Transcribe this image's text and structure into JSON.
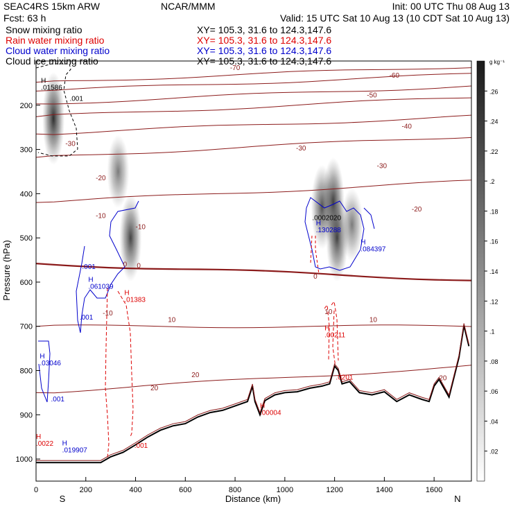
{
  "header": {
    "left_lines": [
      "SEAC4RS 15km ARW",
      "Fcst:    63 h"
    ],
    "center": "NCAR/MMM",
    "init": "Init: 00 UTC Thu 08 Aug 13",
    "valid": "Valid: 15 UTC Sat 10 Aug 13 (10 CDT Sat 10 Aug 13)"
  },
  "fields": [
    {
      "label": "Snow mixing ratio",
      "xy": "XY=  105.3,  31.6  to  124.3,147.6",
      "color": "#000000"
    },
    {
      "label": "Rain water mixing ratio",
      "xy": "XY=  105.3,  31.6  to  124.3,147.6",
      "color": "#dd0000"
    },
    {
      "label": "Cloud water mixing ratio",
      "xy": "XY=  105.3,  31.6  to  124.3,147.6",
      "color": "#0000cc"
    },
    {
      "label": "Cloud ice mixing ratio",
      "xy": "XY=  105.3,  31.6  to  124.3,147.6",
      "color": "#000000"
    }
  ],
  "colorbar": {
    "unit": "g kg⁻¹",
    "ticks": [
      ".02",
      ".04",
      ".06",
      ".08",
      ".1",
      ".12",
      ".14",
      ".16",
      ".18",
      ".2",
      ".22",
      ".24",
      ".26"
    ]
  },
  "colors": {
    "temperature": "#8b1a1a",
    "rain": "#dd0000",
    "cloud_water": "#0000cc",
    "terrain": "#000000"
  },
  "chart_data": {
    "type": "cross-section",
    "xlabel": "Distance (km)",
    "ylabel": "Pressure (hPa)",
    "xlim": [
      0,
      1750
    ],
    "ylim": [
      1050,
      100
    ],
    "x_ticks": [
      "0",
      "200",
      "400",
      "600",
      "800",
      "1000",
      "1200",
      "1400",
      "1600"
    ],
    "y_ticks": [
      "200",
      "300",
      "400",
      "500",
      "600",
      "700",
      "800",
      "900",
      "1000"
    ],
    "x_end_labels": {
      "left": "S",
      "right": "N"
    },
    "isotherms": [
      {
        "t": -70,
        "left": 148,
        "right": 112
      },
      {
        "t": -60,
        "left": 168,
        "right": 130
      },
      {
        "t": -50,
        "left": 197,
        "right": 156
      },
      {
        "t": -40,
        "left": 226,
        "right": 182
      },
      {
        "t": -30,
        "left": 265,
        "right": 225
      },
      {
        "t": -20,
        "left": 318,
        "right": 270
      },
      {
        "t": -10,
        "left": 420,
        "right": 372
      },
      {
        "t": 0,
        "left": 558,
        "right": 595
      },
      {
        "t": 10,
        "left": 700,
        "right": 700
      },
      {
        "t": 20,
        "left": 850,
        "right": 790
      }
    ],
    "contour_labels": [
      {
        "text": "-70",
        "x": 780,
        "y": 120,
        "color": "temperature"
      },
      {
        "text": "-60",
        "x": 1420,
        "y": 138,
        "color": "temperature"
      },
      {
        "text": "-50",
        "x": 1330,
        "y": 182,
        "color": "temperature"
      },
      {
        "text": "-40",
        "x": 1470,
        "y": 253,
        "color": "temperature"
      },
      {
        "text": "-30",
        "x": 1045,
        "y": 302,
        "color": "temperature"
      },
      {
        "text": "-30",
        "x": 1370,
        "y": 342,
        "color": "temperature"
      },
      {
        "text": "-30",
        "x": 118,
        "y": 292,
        "color": "temperature"
      },
      {
        "text": "-20",
        "x": 240,
        "y": 370,
        "color": "temperature"
      },
      {
        "text": "-20",
        "x": 1510,
        "y": 440,
        "color": "temperature"
      },
      {
        "text": "-10",
        "x": 240,
        "y": 455,
        "color": "temperature"
      },
      {
        "text": "-10",
        "x": 400,
        "y": 480,
        "color": "temperature"
      },
      {
        "text": "-10",
        "x": 268,
        "y": 675,
        "color": "temperature"
      },
      {
        "text": "0",
        "x": 350,
        "y": 565,
        "color": "temperature"
      },
      {
        "text": "0",
        "x": 405,
        "y": 568,
        "color": "temperature"
      },
      {
        "text": "0",
        "x": 1115,
        "y": 592,
        "color": "temperature"
      },
      {
        "text": "10",
        "x": 530,
        "y": 690,
        "color": "temperature"
      },
      {
        "text": "10",
        "x": 1160,
        "y": 672,
        "color": "temperature"
      },
      {
        "text": "10",
        "x": 1340,
        "y": 690,
        "color": "temperature"
      },
      {
        "text": "20",
        "x": 460,
        "y": 845,
        "color": "temperature"
      },
      {
        "text": "20",
        "x": 625,
        "y": 815,
        "color": "temperature"
      },
      {
        "text": "20",
        "x": 1620,
        "y": 822,
        "color": "temperature"
      },
      {
        "text": ".001",
        "x": 135,
        "y": 190,
        "color": "black"
      },
      {
        "text": ".0002020",
        "x": 1110,
        "y": 460,
        "color": "black"
      },
      {
        "text": ".001",
        "x": 185,
        "y": 570,
        "color": "cloud_water"
      },
      {
        "text": ".001",
        "x": 175,
        "y": 685,
        "color": "cloud_water"
      },
      {
        "text": ".001",
        "x": 60,
        "y": 870,
        "color": "cloud_water"
      },
      {
        "text": ".001",
        "x": 395,
        "y": 975,
        "color": "rain"
      },
      {
        "text": ".0201",
        "x": 1205,
        "y": 820,
        "color": "rain"
      }
    ],
    "extrema": [
      {
        "text": ".01586",
        "x": 20,
        "y": 165,
        "color": "black"
      },
      {
        "text": ".130288",
        "x": 1125,
        "y": 487,
        "color": "cloud_water"
      },
      {
        "text": ".084397",
        "x": 1305,
        "y": 530,
        "color": "cloud_water"
      },
      {
        "text": ".061039",
        "x": 210,
        "y": 615,
        "color": "cloud_water"
      },
      {
        "text": ".01383",
        "x": 355,
        "y": 645,
        "color": "rain"
      },
      {
        "text": ".00211",
        "x": 1160,
        "y": 725,
        "color": "rain"
      },
      {
        "text": ".03046",
        "x": 15,
        "y": 788,
        "color": "cloud_water"
      },
      {
        "text": ".00004",
        "x": 900,
        "y": 900,
        "color": "rain"
      },
      {
        "text": ".0022",
        "x": 0,
        "y": 970,
        "color": "rain"
      },
      {
        "text": ".019907",
        "x": 105,
        "y": 985,
        "color": "cloud_water"
      }
    ],
    "hydrometeor_max": [
      {
        "x": 70,
        "p": 230,
        "value": 0.22
      },
      {
        "x": 330,
        "p": 350,
        "value": 0.08
      },
      {
        "x": 380,
        "p": 500,
        "value": 0.18
      },
      {
        "x": 1150,
        "p": 430,
        "value": 0.16
      },
      {
        "x": 1195,
        "p": 420,
        "value": 0.2
      },
      {
        "x": 1210,
        "p": 500,
        "value": 0.18
      },
      {
        "x": 1270,
        "p": 470,
        "value": 0.08
      }
    ],
    "terrain": [
      [
        0,
        1008
      ],
      [
        260,
        1008
      ],
      [
        300,
        995
      ],
      [
        350,
        985
      ],
      [
        400,
        968
      ],
      [
        450,
        950
      ],
      [
        500,
        935
      ],
      [
        550,
        925
      ],
      [
        600,
        920
      ],
      [
        650,
        905
      ],
      [
        700,
        895
      ],
      [
        750,
        890
      ],
      [
        800,
        880
      ],
      [
        850,
        870
      ],
      [
        870,
        835
      ],
      [
        880,
        870
      ],
      [
        900,
        900
      ],
      [
        920,
        868
      ],
      [
        960,
        855
      ],
      [
        1000,
        850
      ],
      [
        1050,
        848
      ],
      [
        1100,
        840
      ],
      [
        1150,
        835
      ],
      [
        1180,
        830
      ],
      [
        1200,
        790
      ],
      [
        1215,
        800
      ],
      [
        1230,
        830
      ],
      [
        1260,
        825
      ],
      [
        1300,
        850
      ],
      [
        1350,
        855
      ],
      [
        1400,
        848
      ],
      [
        1450,
        870
      ],
      [
        1500,
        855
      ],
      [
        1550,
        865
      ],
      [
        1580,
        870
      ],
      [
        1600,
        835
      ],
      [
        1620,
        820
      ],
      [
        1660,
        860
      ],
      [
        1700,
        770
      ],
      [
        1720,
        698
      ],
      [
        1740,
        745
      ]
    ]
  }
}
